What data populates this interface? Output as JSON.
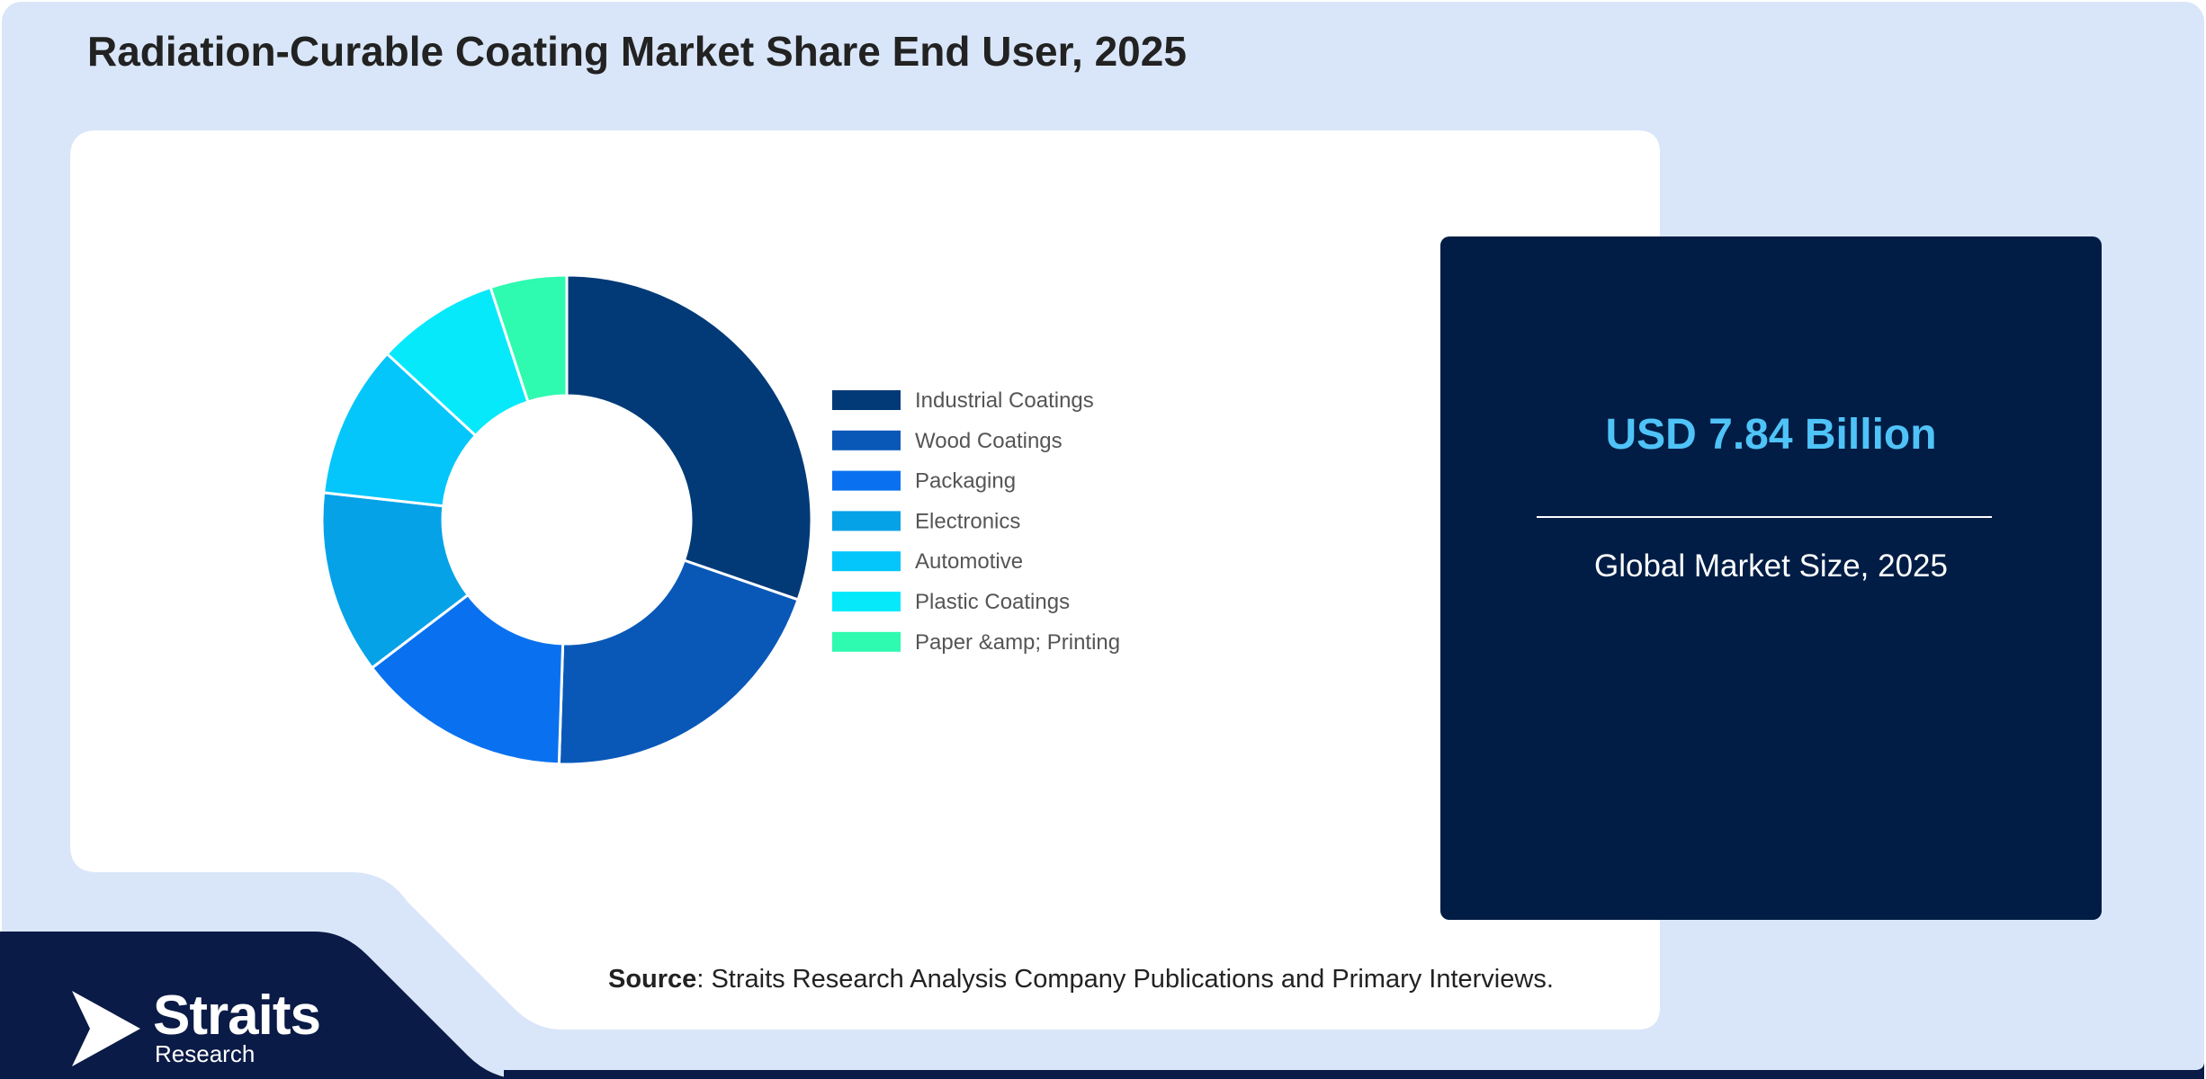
{
  "title": "Radiation-Curable Coating Market Share End User, 2025",
  "chart_data": {
    "type": "pie",
    "variant": "donut",
    "categories": [
      "Industrial Coatings",
      "Wood Coatings",
      "Packaging",
      "Electronics",
      "Automotive",
      "Plastic Coatings",
      "Paper &amp; Printing"
    ],
    "values": [
      30,
      20,
      14,
      12,
      10,
      8,
      5
    ],
    "colors": [
      "#023a78",
      "#0958b8",
      "#0971f0",
      "#05a2e8",
      "#04c6fa",
      "#05e9fb",
      "#2efab0"
    ],
    "legend_position": "right"
  },
  "stat": {
    "value": "USD 7.84 Billion",
    "label": "Global Market Size, 2025"
  },
  "source": {
    "label": "Source",
    "text": ": Straits Research Analysis Company Publications and Primary Interviews."
  },
  "logo": {
    "name": "Straits",
    "sub": "Research",
    "icon": "straits-arrow-logo-icon"
  }
}
